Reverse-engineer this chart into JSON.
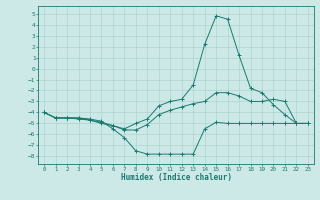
{
  "xlabel": "Humidex (Indice chaleur)",
  "background_color": "#cce9e7",
  "grid_color": "#aed4d1",
  "line_color": "#1a7a6e",
  "xlim": [
    -0.5,
    23.5
  ],
  "ylim": [
    -8.7,
    5.7
  ],
  "yticks": [
    5,
    4,
    3,
    2,
    1,
    0,
    -1,
    -2,
    -3,
    -4,
    -5,
    -6,
    -7,
    -8
  ],
  "xticks": [
    0,
    1,
    2,
    3,
    4,
    5,
    6,
    7,
    8,
    9,
    10,
    11,
    12,
    13,
    14,
    15,
    16,
    17,
    18,
    19,
    20,
    21,
    22,
    23
  ],
  "line1_x": [
    0,
    1,
    2,
    3,
    4,
    5,
    6,
    7,
    8,
    9,
    10,
    11,
    12,
    13,
    14,
    15,
    16,
    17,
    18,
    19,
    20,
    21,
    22,
    23
  ],
  "line1_y": [
    -4.0,
    -4.5,
    -4.5,
    -4.5,
    -4.6,
    -4.8,
    -5.5,
    -6.3,
    -7.5,
    -7.8,
    -7.8,
    -7.8,
    -7.8,
    -7.8,
    -5.5,
    -4.9,
    -5.0,
    -5.0,
    -5.0,
    -5.0,
    -5.0,
    -5.0,
    -5.0,
    -5.0
  ],
  "line2_x": [
    0,
    1,
    2,
    3,
    4,
    5,
    6,
    7,
    8,
    9,
    10,
    11,
    12,
    13,
    14,
    15,
    16,
    17,
    18,
    19,
    20,
    21,
    22,
    23
  ],
  "line2_y": [
    -4.0,
    -4.5,
    -4.5,
    -4.6,
    -4.7,
    -4.9,
    -5.2,
    -5.6,
    -5.6,
    -5.1,
    -4.2,
    -3.8,
    -3.5,
    -3.2,
    -3.0,
    -2.2,
    -2.2,
    -2.5,
    -3.0,
    -3.0,
    -2.8,
    -3.0,
    -5.0,
    -5.0
  ],
  "line3_x": [
    0,
    1,
    2,
    3,
    4,
    5,
    6,
    7,
    8,
    9,
    10,
    11,
    12,
    13,
    14,
    15,
    16,
    17,
    18,
    19,
    20,
    21,
    22,
    23
  ],
  "line3_y": [
    -4.0,
    -4.5,
    -4.5,
    -4.5,
    -4.7,
    -5.0,
    -5.2,
    -5.5,
    -5.0,
    -4.6,
    -3.4,
    -3.0,
    -2.8,
    -1.5,
    2.2,
    4.8,
    4.5,
    1.2,
    -1.8,
    -2.2,
    -3.3,
    -4.2,
    -5.0,
    -5.0
  ]
}
